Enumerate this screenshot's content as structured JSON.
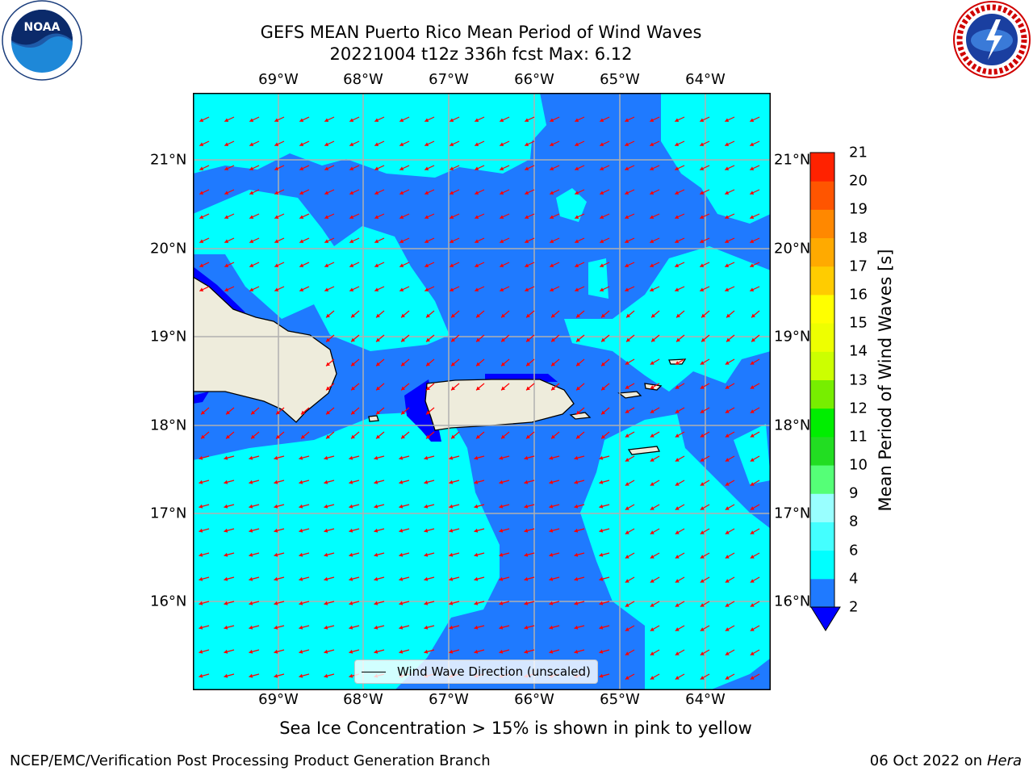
{
  "title": {
    "line1": "GEFS MEAN Puerto Rico Mean Period of Wind Waves",
    "line2": "20221004 t12z 336h fcst   Max: 6.12"
  },
  "axes": {
    "lon_labels": [
      "69°W",
      "68°W",
      "67°W",
      "66°W",
      "65°W",
      "64°W"
    ],
    "lat_labels": [
      "21°N",
      "20°N",
      "19°N",
      "18°N",
      "17°N",
      "16°N"
    ],
    "lon_range": [
      -70.0,
      -63.25
    ],
    "lat_range": [
      15.0,
      21.75
    ],
    "grid": true
  },
  "legend": {
    "label": "Wind Wave Direction (unscaled)"
  },
  "colorbar": {
    "title": "Mean Period of Wind Waves [s]",
    "ticks": [
      "21",
      "20",
      "19",
      "18",
      "17",
      "16",
      "15",
      "14",
      "13",
      "12",
      "11",
      "10",
      "9",
      "8",
      "6",
      "4",
      "2"
    ],
    "levels": [
      2,
      4,
      6,
      8,
      9,
      10,
      11,
      12,
      13,
      14,
      15,
      16,
      17,
      18,
      19,
      20,
      21
    ],
    "colors": [
      "#1f7aff",
      "#00ffff",
      "#44ffff",
      "#99ffff",
      "#55ff77",
      "#22dd22",
      "#00ee00",
      "#77ee00",
      "#ccff00",
      "#eeff00",
      "#ffff00",
      "#ffcc00",
      "#ffaa00",
      "#ff8800",
      "#ff5500",
      "#ff2200"
    ],
    "extend_color": "#0000ff"
  },
  "colors": {
    "cyan": "#00ffff",
    "mid_blue": "#1f7aff",
    "deep_blue": "#0000ff",
    "land": "#eeecdc",
    "arrow": "#ff0000",
    "grid": "#b0b0b0"
  },
  "icons": {
    "left_logo": "noaa-logo",
    "right_logo": "nws-logo"
  },
  "note": "Sea Ice Concentration > 15% is shown in pink to yellow",
  "footer": {
    "left": "NCEP/EMC/Verification Post Processing Product Generation Branch",
    "date": "06 Oct 2022 on ",
    "machine": "Hera"
  }
}
